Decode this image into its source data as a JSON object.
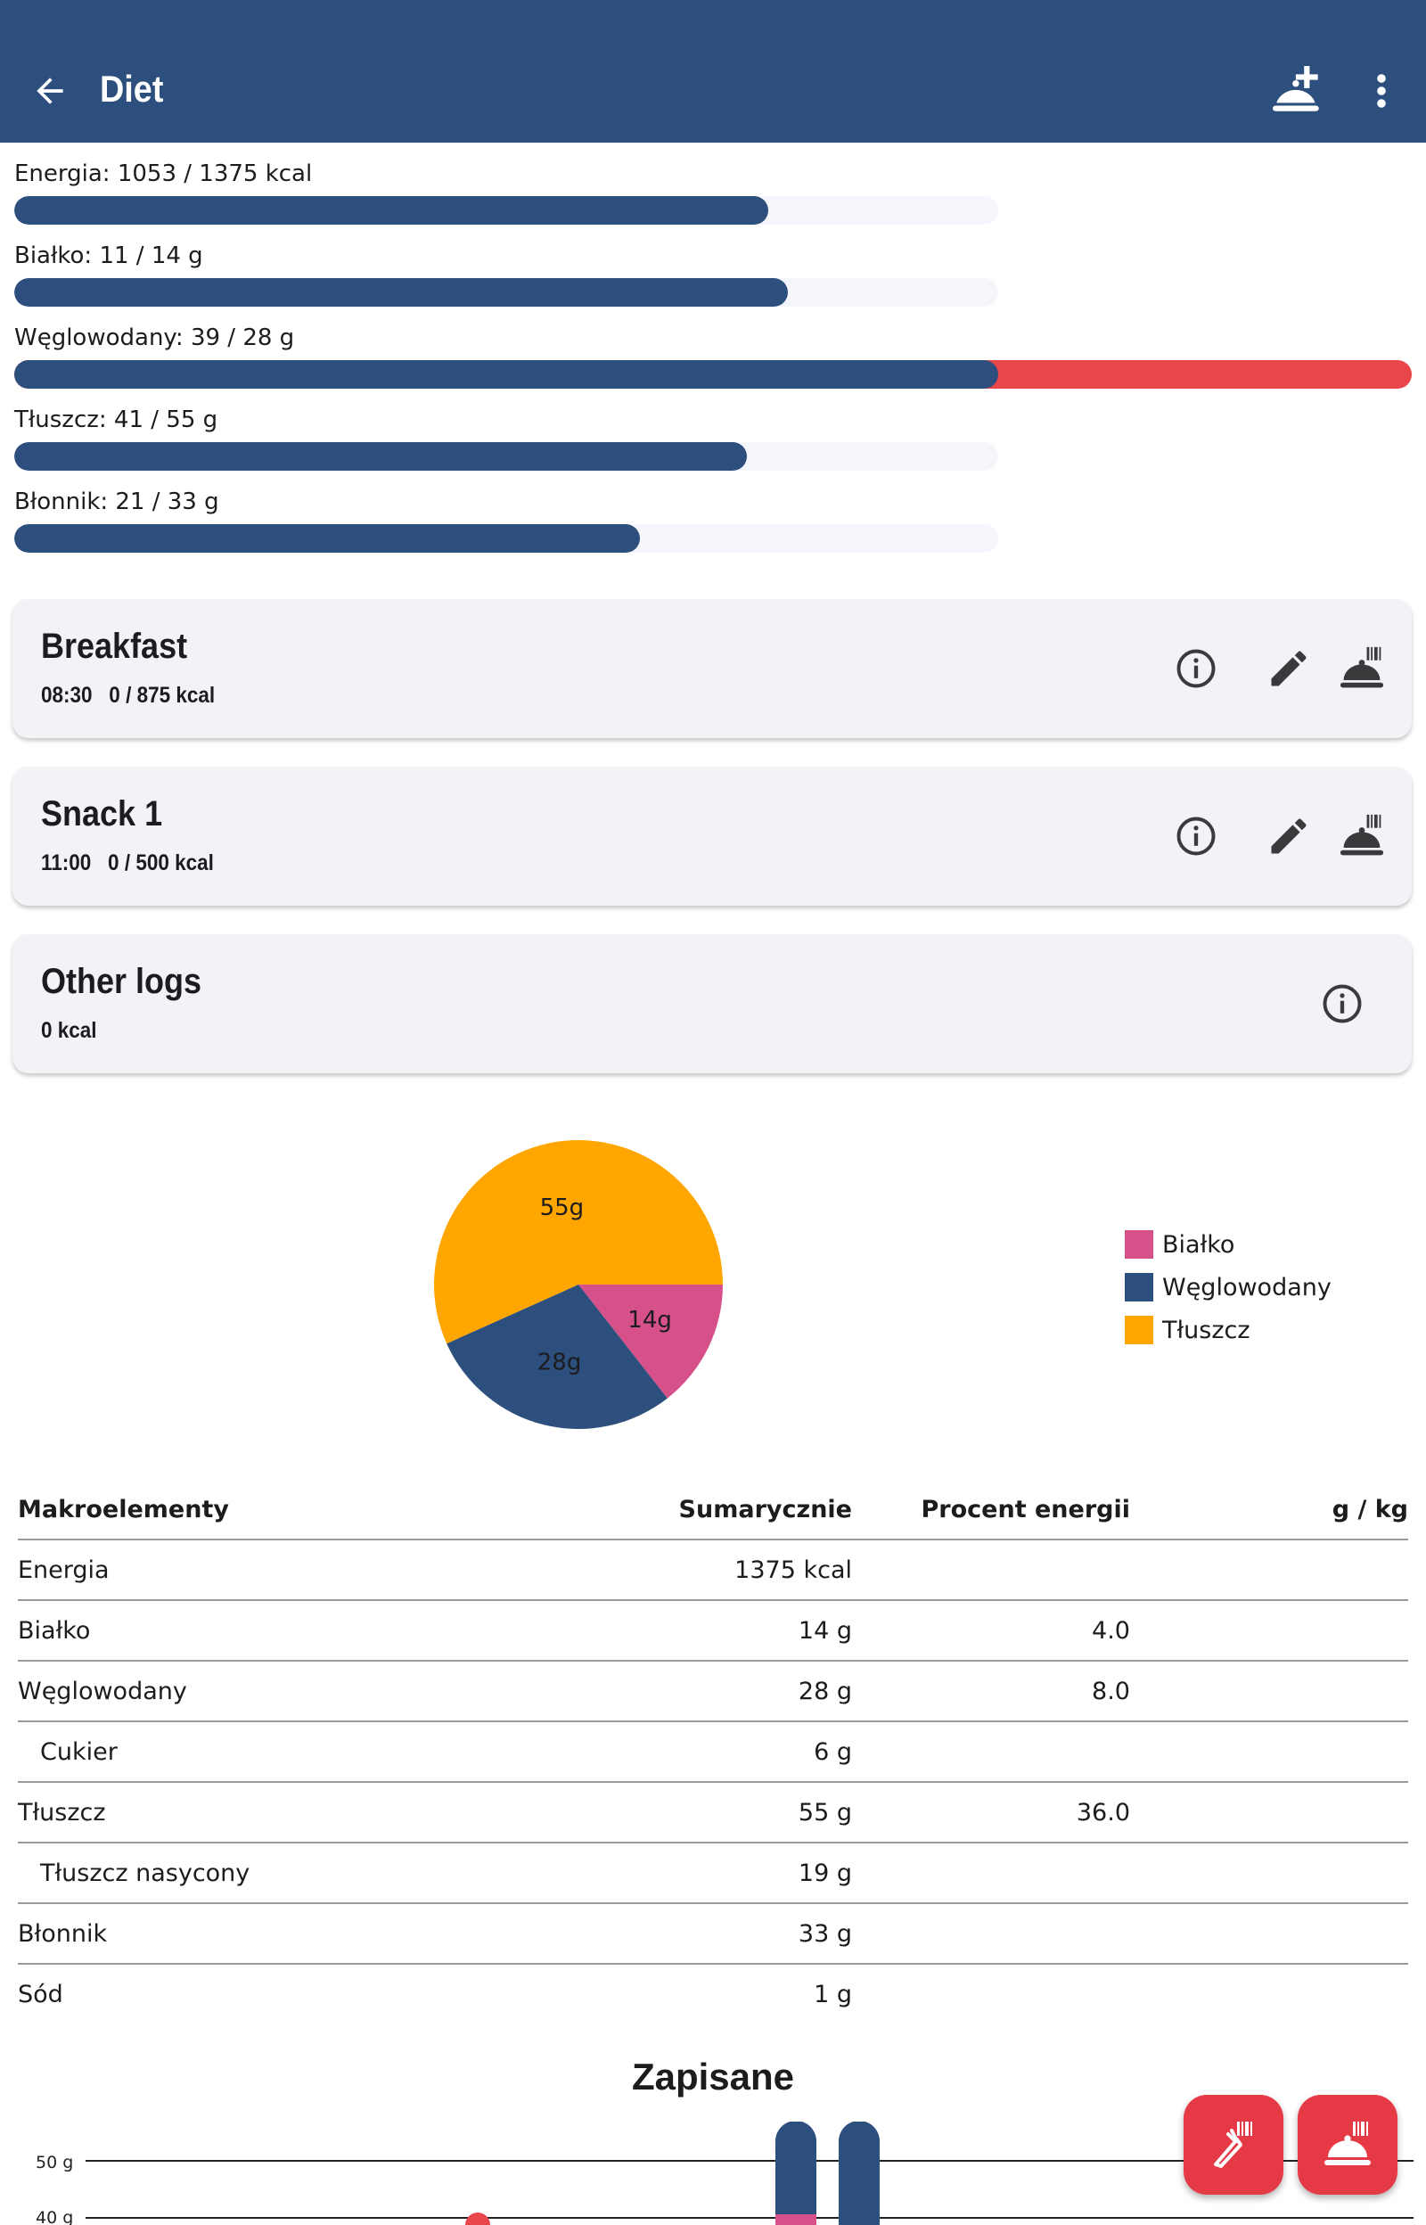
{
  "appbar": {
    "title": "Diet"
  },
  "nutrients": [
    {
      "label": "Energia: 1053 / 1375 kcal",
      "progress": 0.766
    },
    {
      "label": "Białko: 11 / 14 g",
      "progress": 0.786
    },
    {
      "label": "Węglowodany: 39 / 28 g",
      "progress": 1.39
    },
    {
      "label": "Tłuszcz: 41 / 55 g",
      "progress": 0.745
    },
    {
      "label": "Błonnik: 21 / 33 g",
      "progress": 0.636
    }
  ],
  "meals": [
    {
      "name": "Breakfast",
      "sub": "08:30   0 / 875 kcal"
    },
    {
      "name": "Snack 1",
      "sub": "11:00   0 / 500 kcal"
    },
    {
      "name": "Other logs",
      "sub": "0 kcal"
    }
  ],
  "chart_data": [
    {
      "type": "pie",
      "slices": [
        {
          "name": "Białko",
          "value": 14,
          "label": "14g",
          "color": "#d6508a"
        },
        {
          "name": "Węglowodany",
          "value": 28,
          "label": "28g",
          "color": "#2c4f7d"
        },
        {
          "name": "Tłuszcz",
          "value": 55,
          "label": "55g",
          "color": "#ffa600"
        }
      ],
      "legend": [
        "Białko",
        "Węglowodany",
        "Tłuszcz"
      ],
      "legend_position": "right"
    },
    {
      "type": "bar",
      "title": "Zapisane",
      "y_ticks": [
        "50 g",
        "40 g"
      ],
      "visible": "partial"
    }
  ],
  "table": {
    "headers": [
      "Makroelementy",
      "Sumarycznie",
      "Procent energii",
      "g / kg"
    ],
    "rows": [
      {
        "name": "Energia",
        "total": "1375 kcal",
        "percent": "",
        "gkg": ""
      },
      {
        "name": "Białko",
        "total": "14 g",
        "percent": "4.0",
        "gkg": ""
      },
      {
        "name": "Węglowodany",
        "total": "28 g",
        "percent": "8.0",
        "gkg": ""
      },
      {
        "name": "Cukier",
        "total": "6 g",
        "percent": "",
        "gkg": ""
      },
      {
        "name": "Tłuszcz",
        "total": "55 g",
        "percent": "36.0",
        "gkg": ""
      },
      {
        "name": "Tłuszcz nasycony",
        "total": "19 g",
        "percent": "",
        "gkg": ""
      },
      {
        "name": "Błonnik",
        "total": "33 g",
        "percent": "",
        "gkg": ""
      },
      {
        "name": "Sód",
        "total": "1 g",
        "percent": "",
        "gkg": ""
      }
    ]
  },
  "colors": {
    "primary": "#2c4f7d",
    "over": "#e9464c",
    "fab": "#e63946",
    "card": "#f2f2f7"
  },
  "icons": [
    "back-arrow-icon",
    "add-meal-icon",
    "more-vert-icon",
    "info-icon",
    "edit-icon",
    "meal-barcode-icon",
    "carrot-barcode-icon"
  ]
}
